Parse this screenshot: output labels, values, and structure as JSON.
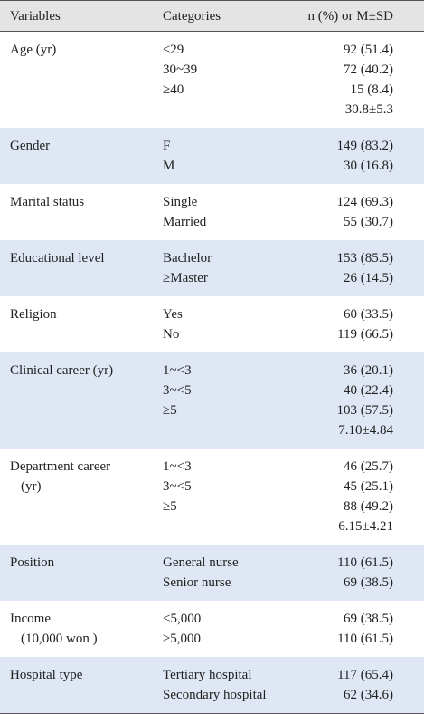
{
  "table": {
    "header": [
      "Variables",
      "Categories",
      "n (%) or M±SD"
    ],
    "rows": [
      {
        "variable": [
          "Age (yr)"
        ],
        "categories": [
          "≤29",
          "30~39",
          "≥40"
        ],
        "values": [
          "92 (51.4)",
          "72 (40.2)",
          "15 (8.4)",
          "30.8±5.3"
        ]
      },
      {
        "variable": [
          "Gender"
        ],
        "categories": [
          "F",
          "M"
        ],
        "values": [
          "149 (83.2)",
          "30 (16.8)"
        ]
      },
      {
        "variable": [
          "Marital status"
        ],
        "categories": [
          "Single",
          "Married"
        ],
        "values": [
          "124 (69.3)",
          "55 (30.7)"
        ]
      },
      {
        "variable": [
          "Educational level"
        ],
        "categories": [
          "Bachelor",
          "≥Master"
        ],
        "values": [
          "153 (85.5)",
          "26 (14.5)"
        ]
      },
      {
        "variable": [
          "Religion"
        ],
        "categories": [
          "Yes",
          "No"
        ],
        "values": [
          "60 (33.5)",
          "119 (66.5)"
        ]
      },
      {
        "variable": [
          "Clinical career (yr)"
        ],
        "categories": [
          "1~<3",
          "3~<5",
          "≥5"
        ],
        "values": [
          "36 (20.1)",
          "40 (22.4)",
          "103 (57.5)",
          "7.10±4.84"
        ]
      },
      {
        "variable": [
          "Department career",
          "(yr)"
        ],
        "categories": [
          "1~<3",
          "3~<5",
          "≥5"
        ],
        "values": [
          "46 (25.7)",
          "45 (25.1)",
          "88 (49.2)",
          "6.15±4.21"
        ]
      },
      {
        "variable": [
          "Position"
        ],
        "categories": [
          "General nurse",
          "Senior nurse"
        ],
        "values": [
          "110 (61.5)",
          "69 (38.5)"
        ]
      },
      {
        "variable": [
          "Income",
          "(10,000 won )"
        ],
        "categories": [
          "<5,000",
          "≥5,000"
        ],
        "values": [
          "69 (38.5)",
          "110 (61.5)"
        ]
      },
      {
        "variable": [
          "Hospital type"
        ],
        "categories": [
          "Tertiary hospital",
          "Secondary hospital"
        ],
        "values": [
          "117 (65.4)",
          "62 (34.6)"
        ]
      }
    ]
  }
}
